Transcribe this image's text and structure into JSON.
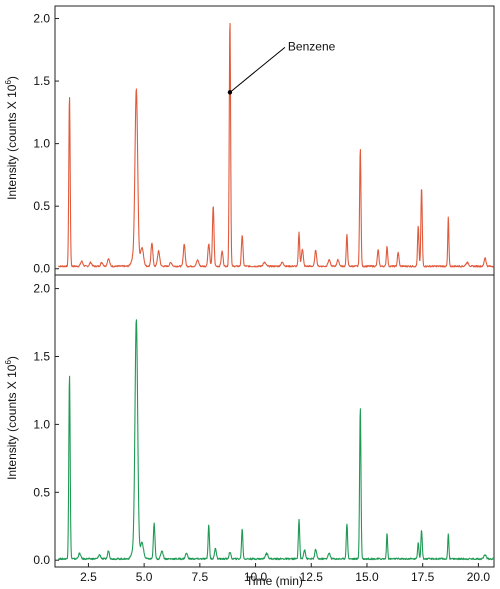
{
  "chart_data": [
    {
      "type": "line",
      "panel": "top",
      "title": "",
      "xlabel": "",
      "ylabel": "Intensity (counts X 10",
      "ylabel_sup": "6",
      "ylabel_end": ")",
      "xlim": [
        1.0,
        20.7
      ],
      "ylim": [
        -0.05,
        2.1
      ],
      "yticks": [
        0.0,
        0.5,
        1.0,
        1.5,
        2.0
      ],
      "ytick_labels": [
        "0.0",
        "0.5",
        "1.0",
        "1.5",
        "2.0"
      ],
      "grid": false,
      "legend": "none",
      "annotation": {
        "text": "Benzene",
        "x": 8.85,
        "y": 1.41
      },
      "series": [
        {
          "color": "#e05a3c",
          "baseline": 0.02,
          "peaks": [
            [
              1.65,
              1.37,
              0.03
            ],
            [
              2.2,
              0.04,
              0.05
            ],
            [
              2.6,
              0.03,
              0.05
            ],
            [
              3.1,
              0.03,
              0.05
            ],
            [
              3.4,
              0.06,
              0.05
            ],
            [
              4.5,
              0.06,
              0.08
            ],
            [
              4.65,
              1.41,
              0.06
            ],
            [
              4.9,
              0.15,
              0.07
            ],
            [
              5.35,
              0.19,
              0.04
            ],
            [
              5.65,
              0.12,
              0.05
            ],
            [
              6.2,
              0.03,
              0.05
            ],
            [
              6.8,
              0.18,
              0.04
            ],
            [
              7.4,
              0.05,
              0.05
            ],
            [
              7.9,
              0.18,
              0.04
            ],
            [
              8.1,
              0.48,
              0.035
            ],
            [
              8.5,
              0.12,
              0.04
            ],
            [
              8.85,
              1.98,
              0.03
            ],
            [
              9.4,
              0.25,
              0.035
            ],
            [
              10.4,
              0.03,
              0.06
            ],
            [
              11.2,
              0.03,
              0.06
            ],
            [
              11.95,
              0.27,
              0.03
            ],
            [
              12.1,
              0.14,
              0.04
            ],
            [
              12.7,
              0.13,
              0.04
            ],
            [
              13.3,
              0.05,
              0.05
            ],
            [
              13.7,
              0.05,
              0.05
            ],
            [
              14.1,
              0.25,
              0.03
            ],
            [
              14.7,
              0.95,
              0.03
            ],
            [
              15.5,
              0.13,
              0.035
            ],
            [
              15.9,
              0.16,
              0.03
            ],
            [
              16.4,
              0.11,
              0.035
            ],
            [
              17.3,
              0.32,
              0.03
            ],
            [
              17.45,
              0.63,
              0.03
            ],
            [
              18.65,
              0.39,
              0.025
            ],
            [
              19.5,
              0.03,
              0.06
            ],
            [
              20.3,
              0.07,
              0.04
            ]
          ]
        }
      ]
    },
    {
      "type": "line",
      "panel": "bottom",
      "title": "",
      "xlabel": "Time (min)",
      "ylabel": "Intensity (counts X 10",
      "ylabel_sup": "6",
      "ylabel_end": ")",
      "xlim": [
        1.0,
        20.7
      ],
      "ylim": [
        -0.05,
        2.1
      ],
      "xticks": [
        2.5,
        5.0,
        7.5,
        10.0,
        12.5,
        15.0,
        17.5,
        20.0
      ],
      "xtick_labels": [
        "2.5",
        "5.0",
        "7.5",
        "10.0",
        "12.5",
        "15.0",
        "17.5",
        "20.0"
      ],
      "yticks": [
        0.0,
        0.5,
        1.0,
        1.5,
        2.0
      ],
      "ytick_labels": [
        "0.0",
        "0.5",
        "1.0",
        "1.5",
        "2.0"
      ],
      "grid": false,
      "legend": "none",
      "series": [
        {
          "color": "#1f9a55",
          "baseline": 0.01,
          "peaks": [
            [
              1.65,
              1.36,
              0.03
            ],
            [
              2.1,
              0.04,
              0.05
            ],
            [
              3.0,
              0.03,
              0.05
            ],
            [
              3.4,
              0.06,
              0.04
            ],
            [
              4.5,
              0.05,
              0.08
            ],
            [
              4.65,
              1.76,
              0.06
            ],
            [
              4.9,
              0.12,
              0.07
            ],
            [
              5.45,
              0.26,
              0.035
            ],
            [
              5.8,
              0.06,
              0.05
            ],
            [
              6.9,
              0.04,
              0.05
            ],
            [
              7.9,
              0.25,
              0.03
            ],
            [
              8.2,
              0.08,
              0.04
            ],
            [
              8.85,
              0.05,
              0.04
            ],
            [
              9.4,
              0.22,
              0.03
            ],
            [
              10.5,
              0.04,
              0.06
            ],
            [
              11.95,
              0.29,
              0.03
            ],
            [
              12.2,
              0.07,
              0.04
            ],
            [
              12.7,
              0.07,
              0.04
            ],
            [
              13.3,
              0.04,
              0.05
            ],
            [
              14.1,
              0.26,
              0.03
            ],
            [
              14.7,
              1.12,
              0.03
            ],
            [
              15.9,
              0.19,
              0.025
            ],
            [
              17.3,
              0.12,
              0.03
            ],
            [
              17.45,
              0.21,
              0.03
            ],
            [
              18.65,
              0.19,
              0.025
            ],
            [
              20.3,
              0.03,
              0.05
            ]
          ]
        }
      ]
    }
  ]
}
